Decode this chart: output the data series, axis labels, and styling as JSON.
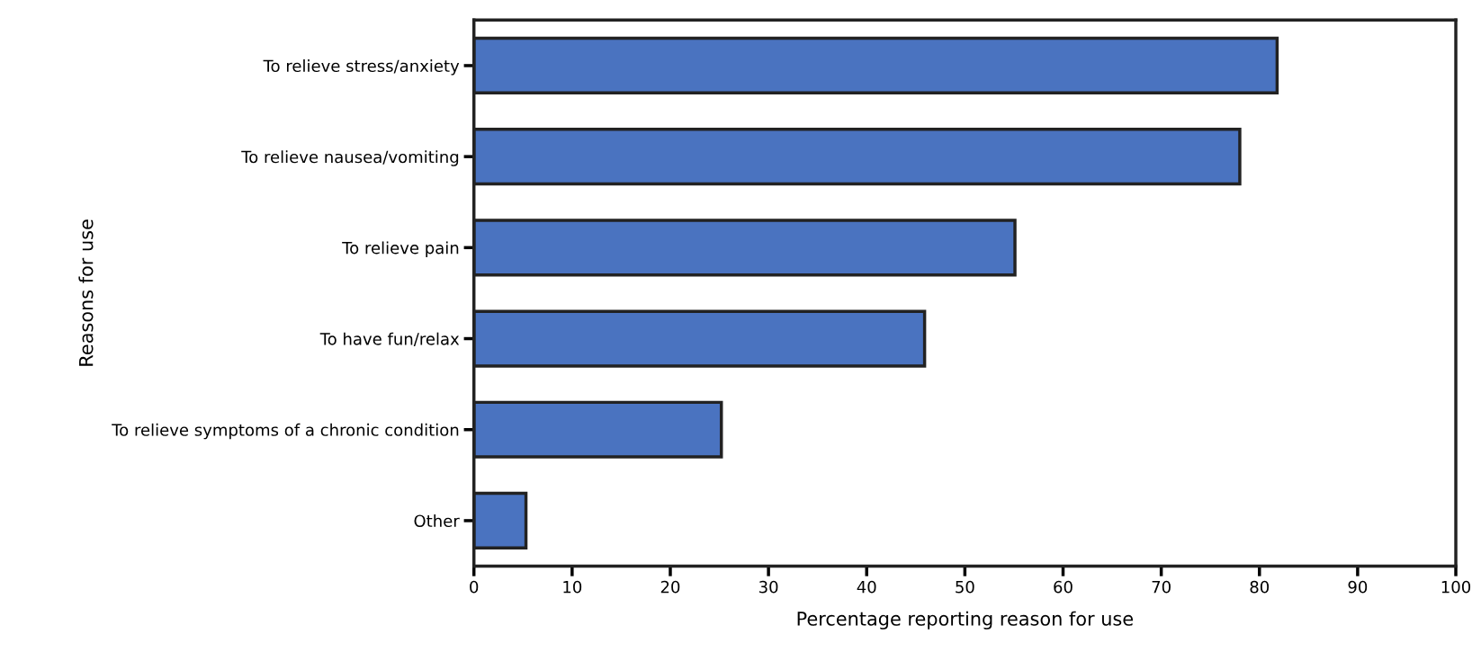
{
  "chart_data": {
    "type": "bar",
    "orientation": "horizontal",
    "xlabel": "Percentage reporting reason for use",
    "ylabel": "Reasons for use",
    "categories": [
      "To relieve stress/anxiety",
      "To relieve nausea/vomiting",
      "To relieve pain",
      "To have fun/relax",
      "To relieve symptoms of a chronic condition",
      "Other"
    ],
    "values": [
      81.8,
      78.0,
      55.1,
      45.9,
      25.2,
      5.3
    ],
    "color": "#4a73c0",
    "xlim": [
      0,
      100
    ],
    "xticks": [
      0,
      10,
      20,
      30,
      40,
      50,
      60,
      70,
      80,
      90,
      100
    ],
    "grid": false,
    "legend": false
  }
}
